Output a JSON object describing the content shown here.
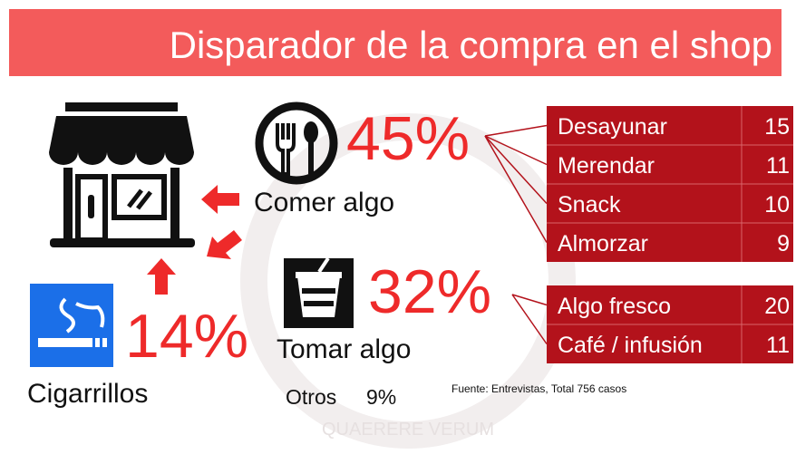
{
  "title": "Disparador de la compra en el shop",
  "triggers": [
    {
      "label": "Comer algo",
      "value": "45%",
      "items": [
        {
          "label": "Desayunar",
          "value": 15
        },
        {
          "label": "Merendar",
          "value": 11
        },
        {
          "label": "Snack",
          "value": 10
        },
        {
          "label": "Almorzar",
          "value": 9
        }
      ]
    },
    {
      "label": "Tomar algo",
      "value": "32%",
      "items": [
        {
          "label": "Algo fresco",
          "value": 20
        },
        {
          "label": "Café / infusión",
          "value": 11
        }
      ]
    },
    {
      "label": "Cigarrillos",
      "value": "14%"
    }
  ],
  "other": {
    "label": "Otros",
    "value": "9%"
  },
  "source": "Fuente: Entrevistas, Total 756 casos",
  "watermark": "QUAERERE VERUM"
}
